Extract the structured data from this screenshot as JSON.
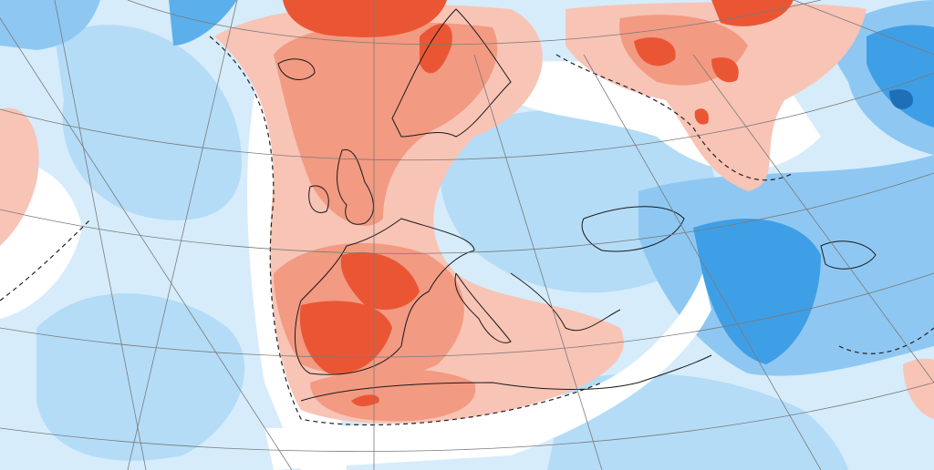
{
  "map": {
    "type": "temperature-anomaly",
    "colors": {
      "background": "#d6ecfb",
      "light_blue": "#b4dcf7",
      "mid_blue": "#8ec8f2",
      "deep_blue": "#3f9fe6",
      "darkest_blue": "#1f6fb8",
      "white": "#ffffff",
      "light_pink": "#f8c4b6",
      "salmon": "#f29a82",
      "red": "#ea5634",
      "dark_red": "#d93a1e",
      "coastline": "#1a1a1a",
      "graticule": "#7a7a7a"
    }
  }
}
